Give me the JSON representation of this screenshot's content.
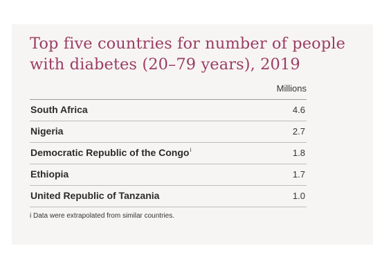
{
  "chart_data": {
    "type": "table",
    "title": "Top five countries for number of people with diabetes (20–79 years), 2019",
    "column_header": "Millions",
    "categories": [
      "South Africa",
      "Nigeria",
      "Democratic Republic of the Congo",
      "Ethiopia",
      "United Republic of Tanzania"
    ],
    "rows": [
      {
        "country": "South Africa",
        "value": "4.6",
        "note_mark": ""
      },
      {
        "country": "Nigeria",
        "value": "2.7",
        "note_mark": ""
      },
      {
        "country": "Democratic Republic of the Congo",
        "value": "1.8",
        "note_mark": "i"
      },
      {
        "country": "Ethiopia",
        "value": "1.7",
        "note_mark": ""
      },
      {
        "country": "United Republic of Tanzania",
        "value": "1.0",
        "note_mark": ""
      }
    ],
    "footnote": "i  Data were extrapolated from similar countries.",
    "title_color": "#9b3d66"
  }
}
